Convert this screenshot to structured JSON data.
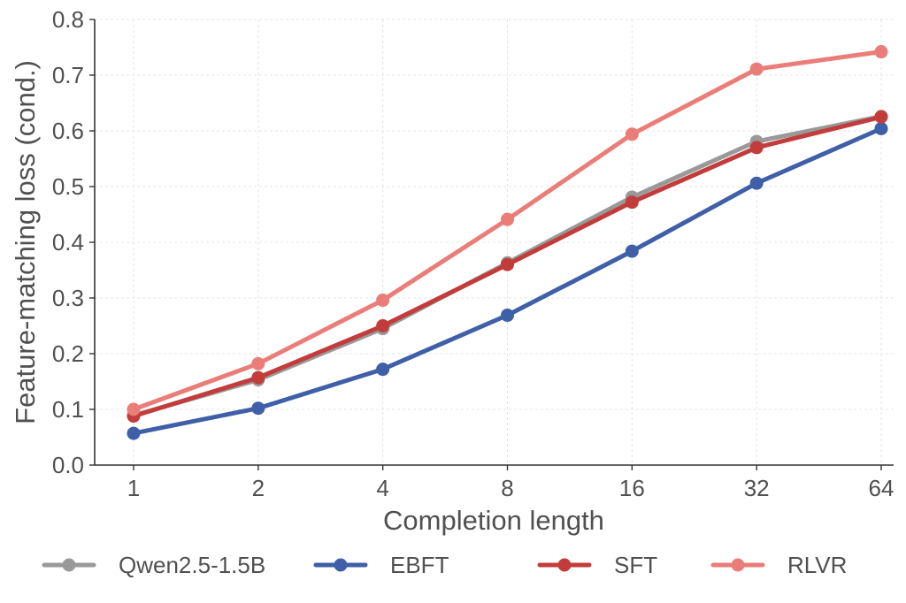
{
  "chart_data": {
    "type": "line",
    "x_scale": "log2",
    "categories": [
      "1",
      "2",
      "4",
      "8",
      "16",
      "32",
      "64"
    ],
    "x": [
      1,
      2,
      4,
      8,
      16,
      32,
      64
    ],
    "xlabel": "Completion length",
    "ylabel": "Feature-matching loss (cond.)",
    "ylim": [
      0.0,
      0.8
    ],
    "yticks": [
      "0.0",
      "0.1",
      "0.2",
      "0.3",
      "0.4",
      "0.5",
      "0.6",
      "0.7",
      "0.8"
    ],
    "grid": true,
    "legend_position": "bottom",
    "series": [
      {
        "name": "Qwen2.5-1.5B",
        "color": "#999999",
        "values": [
          0.089,
          0.153,
          0.245,
          0.363,
          0.481,
          0.581,
          0.626
        ]
      },
      {
        "name": "EBFT",
        "color": "#3f5fa8",
        "values": [
          0.057,
          0.102,
          0.172,
          0.269,
          0.384,
          0.506,
          0.604
        ]
      },
      {
        "name": "SFT",
        "color": "#c33c3c",
        "values": [
          0.088,
          0.157,
          0.25,
          0.36,
          0.472,
          0.57,
          0.625
        ]
      },
      {
        "name": "RLVR",
        "color": "#ea7d78",
        "values": [
          0.1,
          0.182,
          0.296,
          0.441,
          0.594,
          0.711,
          0.742
        ]
      }
    ]
  }
}
